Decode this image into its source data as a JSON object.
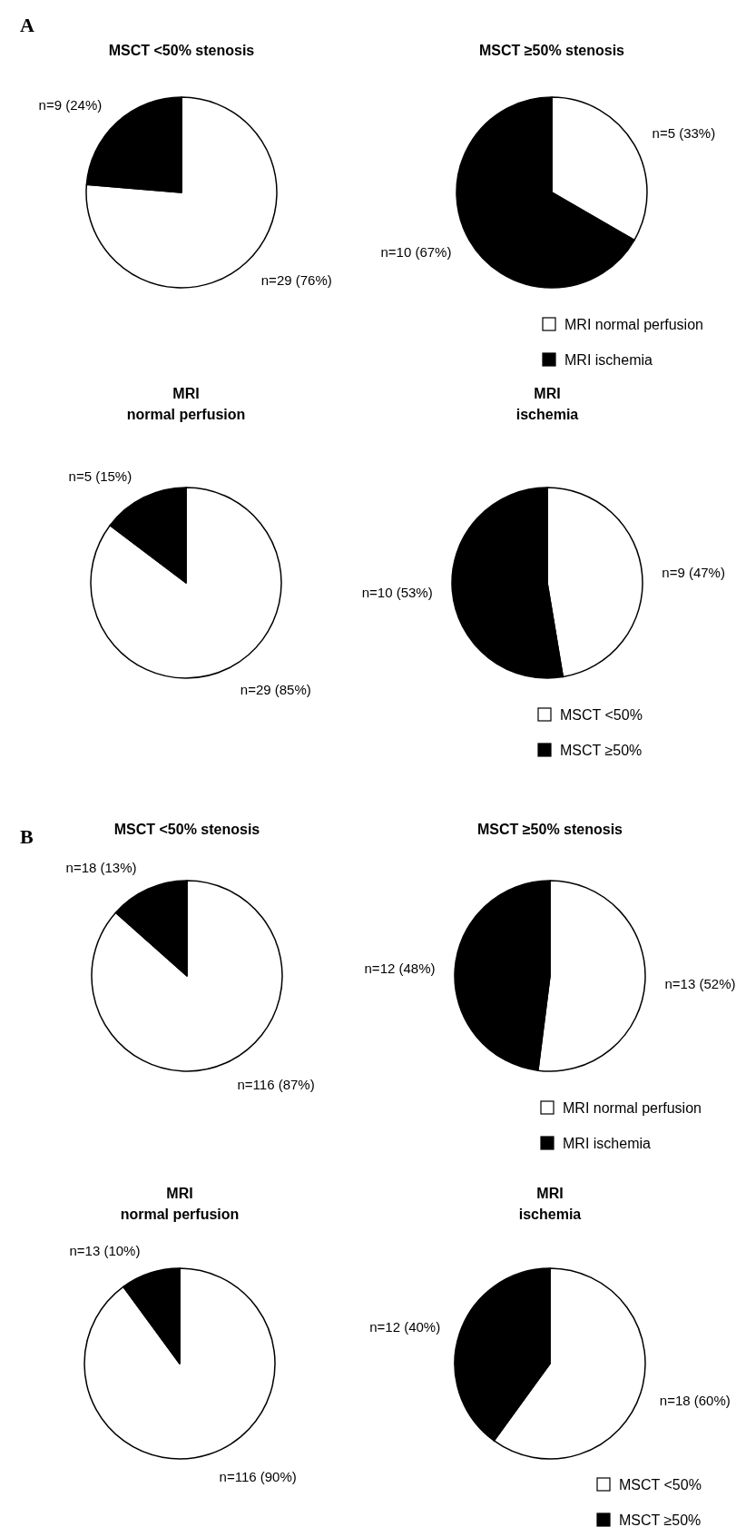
{
  "chart_data": [
    {
      "type": "pie",
      "title": "MSCT <50% stenosis",
      "annotations": [
        "A"
      ],
      "categories": [
        null,
        null
      ],
      "values": [
        29,
        9
      ],
      "value_labels": [
        "n=29 (76%)",
        "n=9 (24%)"
      ],
      "colors": [
        "#ffffff",
        "#000000"
      ],
      "legend": false
    },
    {
      "type": "pie",
      "title": "MSCT ≥50% stenosis",
      "categories": [
        "MRI normal perfusion",
        "MRI ischemia"
      ],
      "values": [
        5,
        10
      ],
      "value_labels": [
        "n=5 (33%)",
        "n=10 (67%)"
      ],
      "colors": [
        "#ffffff",
        "#000000"
      ],
      "legend": "bottom"
    },
    {
      "type": "pie",
      "title": "MRI normal perfusion",
      "categories": [
        null,
        null
      ],
      "values": [
        29,
        5
      ],
      "value_labels": [
        "n=29 (85%)",
        "n=5 (15%)"
      ],
      "colors": [
        "#ffffff",
        "#000000"
      ],
      "legend": false
    },
    {
      "type": "pie",
      "title": "MRI ischemia",
      "categories": [
        "MSCT <50%",
        "MSCT ≥50%"
      ],
      "values": [
        9,
        10
      ],
      "value_labels": [
        "n=9 (47%)",
        "n=10 (53%)"
      ],
      "colors": [
        "#ffffff",
        "#000000"
      ],
      "legend": "bottom"
    },
    {
      "type": "pie",
      "title": "MSCT <50% stenosis",
      "annotations": [
        "B"
      ],
      "categories": [
        null,
        null
      ],
      "values": [
        116,
        18
      ],
      "value_labels": [
        "n=116 (87%)",
        "n=18 (13%)"
      ],
      "colors": [
        "#ffffff",
        "#000000"
      ],
      "legend": false
    },
    {
      "type": "pie",
      "title": "MSCT ≥50% stenosis",
      "categories": [
        "MRI normal perfusion",
        "MRI ischemia"
      ],
      "values": [
        13,
        12
      ],
      "value_labels": [
        "n=13 (52%)",
        "n=12 (48%)"
      ],
      "colors": [
        "#ffffff",
        "#000000"
      ],
      "legend": "bottom"
    },
    {
      "type": "pie",
      "title": "MRI normal perfusion",
      "categories": [
        null,
        null
      ],
      "values": [
        116,
        13
      ],
      "value_labels": [
        "n=116 (90%)",
        "n=13 (10%)"
      ],
      "colors": [
        "#ffffff",
        "#000000"
      ],
      "legend": false
    },
    {
      "type": "pie",
      "title": "MRI ischemia",
      "categories": [
        "MSCT <50%",
        "MSCT ≥50%"
      ],
      "values": [
        18,
        12
      ],
      "value_labels": [
        "n=18 (60%)",
        "n=12 (40%)"
      ],
      "colors": [
        "#ffffff",
        "#000000"
      ],
      "legend": "bottom right"
    }
  ]
}
